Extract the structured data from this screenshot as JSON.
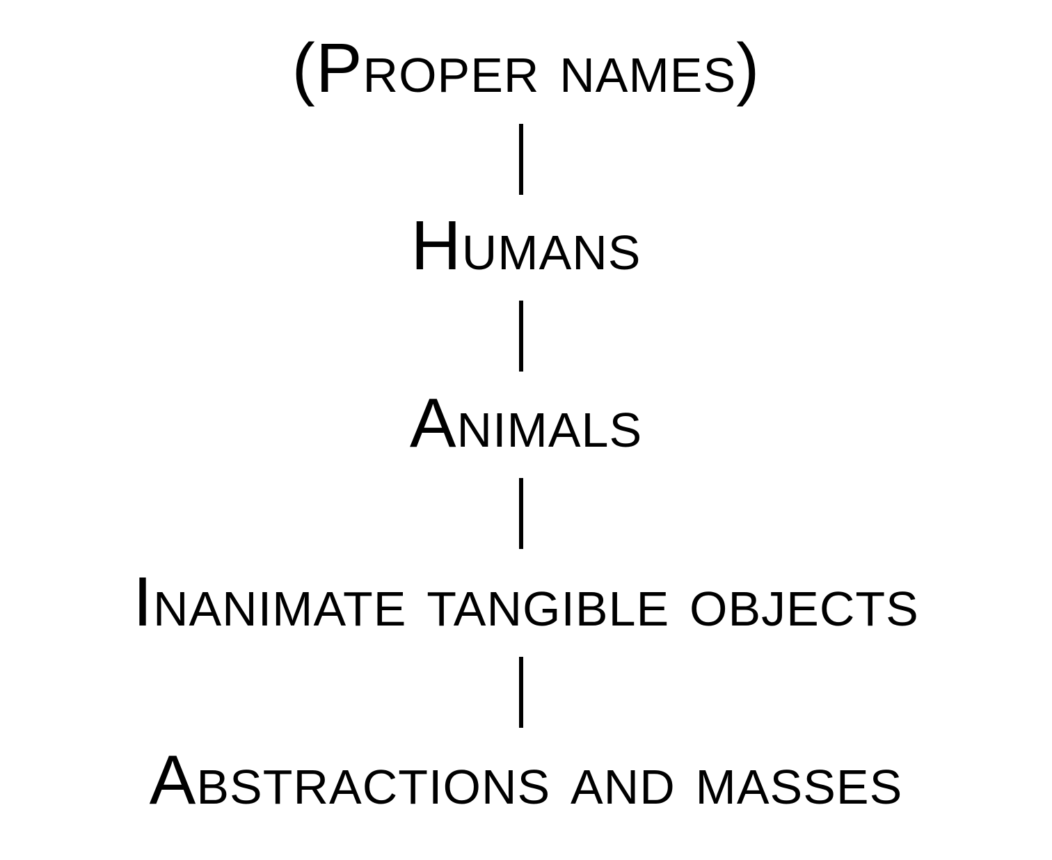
{
  "diagram": {
    "levels": [
      {
        "label": "(Proper names)"
      },
      {
        "label": "Humans"
      },
      {
        "label": "Animals"
      },
      {
        "label": "Inanimate tangible objects"
      },
      {
        "label": "Abstractions and masses"
      }
    ],
    "connector_color": "#000000",
    "text_color": "#000000",
    "background_color": "#ffffff"
  }
}
